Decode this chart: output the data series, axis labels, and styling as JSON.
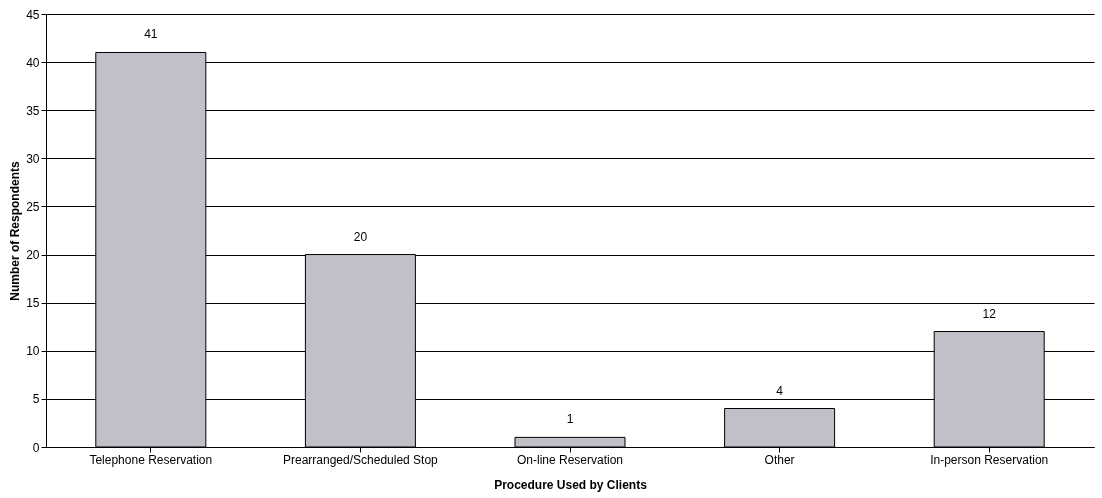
{
  "chart_data": {
    "type": "bar",
    "xlabel": "Procedure Used by Clients",
    "ylabel": "Number of Respondents",
    "categories": [
      "Telephone Reservation",
      "Prearranged/Scheduled Stop",
      "On-line Reservation",
      "Other",
      "In-person Reservation"
    ],
    "values": [
      41,
      20,
      1,
      4,
      12
    ],
    "color": "#c0c0c8",
    "ylim": [
      0,
      45
    ],
    "yticks": [
      0,
      5,
      10,
      15,
      20,
      25,
      30,
      35,
      40,
      45
    ],
    "grid": "y",
    "data_labels": true
  }
}
